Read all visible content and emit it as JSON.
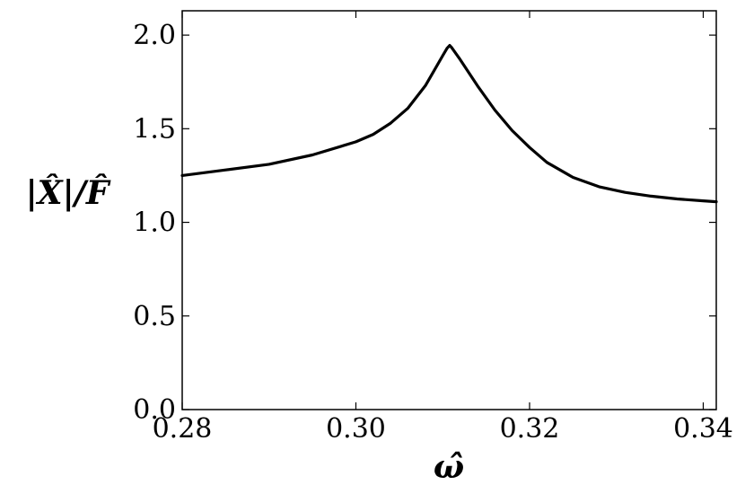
{
  "chart_data": {
    "type": "line",
    "title": "",
    "xlabel": "ω̂",
    "ylabel": "|X̂|/F̂",
    "xlim": [
      0.28,
      0.3415
    ],
    "ylim": [
      0.0,
      2.13
    ],
    "grid": false,
    "legend": "none",
    "x_ticks": [
      {
        "value": 0.28,
        "label": "0.28"
      },
      {
        "value": 0.3,
        "label": "0.30"
      },
      {
        "value": 0.32,
        "label": "0.32"
      },
      {
        "value": 0.34,
        "label": "0.34"
      }
    ],
    "y_ticks": [
      {
        "value": 0.0,
        "label": "0.0"
      },
      {
        "value": 0.5,
        "label": "0.5"
      },
      {
        "value": 1.0,
        "label": "1.0"
      },
      {
        "value": 1.5,
        "label": "1.5"
      },
      {
        "value": 2.0,
        "label": "2.0"
      }
    ],
    "series": [
      {
        "color": "#000000",
        "x": [
          0.28,
          0.285,
          0.29,
          0.295,
          0.3,
          0.302,
          0.304,
          0.306,
          0.308,
          0.309,
          0.31,
          0.3105,
          0.3108,
          0.311,
          0.312,
          0.314,
          0.316,
          0.318,
          0.32,
          0.322,
          0.325,
          0.328,
          0.331,
          0.334,
          0.337,
          0.34,
          0.3415
        ],
        "y": [
          1.25,
          1.28,
          1.31,
          1.36,
          1.43,
          1.47,
          1.53,
          1.61,
          1.73,
          1.81,
          1.89,
          1.93,
          1.945,
          1.935,
          1.87,
          1.73,
          1.6,
          1.49,
          1.4,
          1.32,
          1.24,
          1.19,
          1.16,
          1.14,
          1.125,
          1.115,
          1.11
        ]
      }
    ]
  }
}
